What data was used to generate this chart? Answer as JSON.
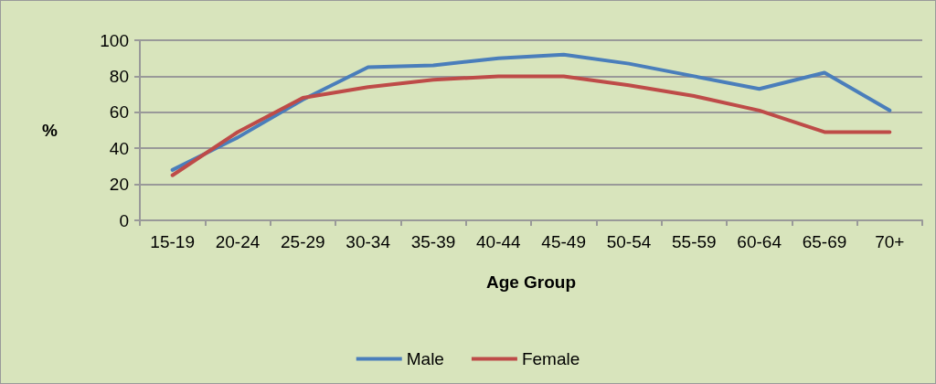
{
  "chart_data": {
    "type": "line",
    "xlabel": "Age Group",
    "ylabel": "%",
    "categories": [
      "15-19",
      "20-24",
      "25-29",
      "30-34",
      "35-39",
      "40-44",
      "45-49",
      "50-54",
      "55-59",
      "60-64",
      "65-69",
      "70+"
    ],
    "series": [
      {
        "name": "Male",
        "color": "#4a7ebb",
        "values": [
          28,
          46,
          67,
          85,
          86,
          90,
          92,
          87,
          80,
          73,
          82,
          61
        ]
      },
      {
        "name": "Female",
        "color": "#be4b48",
        "values": [
          25,
          49,
          68,
          74,
          78,
          80,
          80,
          75,
          69,
          61,
          49,
          49
        ]
      }
    ],
    "ylim": [
      0,
      100
    ],
    "yticks": [
      0,
      20,
      40,
      60,
      80,
      100
    ],
    "grid": "y",
    "legend": "bottom",
    "marker": "none",
    "line_style": "solid"
  }
}
